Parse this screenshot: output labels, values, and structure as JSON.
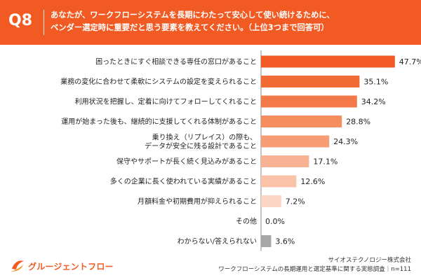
{
  "header": {
    "question_number": "Q8",
    "question_lines": [
      "あなたが、ワークフローシステムを長期にわたって安心して使い続けるために、",
      "ベンダー選定時に重要だと思う要素を教えてください。（上位3つまで回答可）"
    ]
  },
  "chart_data": {
    "type": "bar",
    "orientation": "horizontal",
    "unit": "%",
    "categories": [
      [
        "困ったときにすぐ相談できる専任の窓口があること"
      ],
      [
        "業務の変化に合わせて柔軟にシステムの設定を変えられること"
      ],
      [
        "利用状況を把握し、定着に向けてフォローしてくれること"
      ],
      [
        "運用が始まった後も、継続的に支援してくれる体制があること"
      ],
      [
        "乗り換え（リプレイス）の際も、",
        "データが安全に残る設計であること"
      ],
      [
        "保守やサポートが長く続く見込みがあること"
      ],
      [
        "多くの企業に長く使われている実績があること"
      ],
      [
        "月額料金や初期費用が抑えられること"
      ],
      [
        "その他"
      ],
      [
        "わからない/答えられない"
      ]
    ],
    "values": [
      47.7,
      35.1,
      34.2,
      28.8,
      24.3,
      17.1,
      12.6,
      7.2,
      0.0,
      3.6
    ],
    "value_labels": [
      "47.7%",
      "35.1%",
      "34.2%",
      "28.8%",
      "24.3%",
      "17.1%",
      "12.6%",
      "7.2%",
      "0.0%",
      "3.6%"
    ],
    "bar_colors": [
      "#f15a22",
      "#f26b35",
      "#f37a48",
      "#f58d5f",
      "#f69d75",
      "#f8b293",
      "#fac3a9",
      "#fcd4c3",
      "#fde3d6",
      "#a6a6a6"
    ],
    "xlim": [
      0,
      50
    ],
    "grid": false,
    "legend": "none"
  },
  "footer": {
    "logo_text": "グルージェントフロー",
    "source_company": "サイオステクノロジー株式会社",
    "source_survey": "ワークフローシステムの長期運用と選定基準に関する実態調査｜n=111"
  },
  "colors": {
    "brand_orange": "#f15a22",
    "header_text": "#ffffff",
    "axis_line": "#888888"
  }
}
